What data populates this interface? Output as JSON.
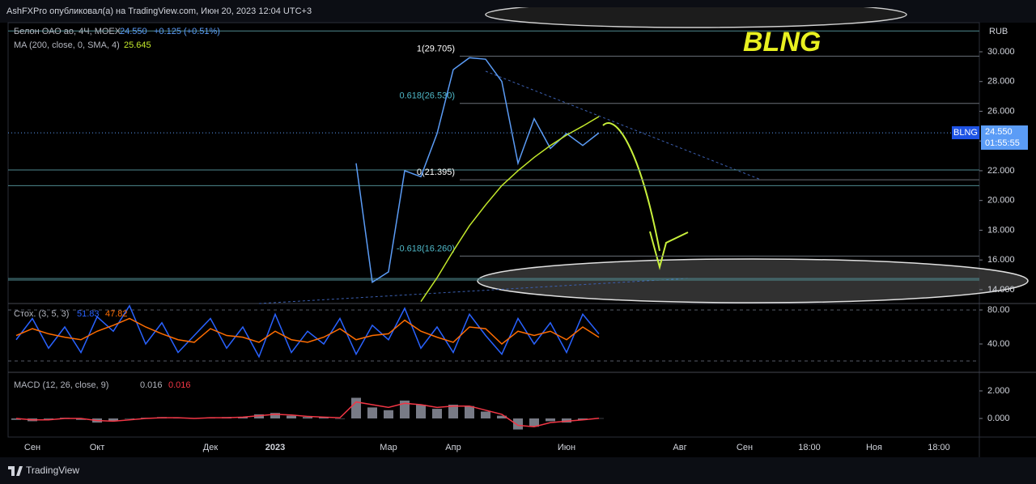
{
  "header": "AshFXPro опубликовал(а) на TradingView.com, Июн 20, 2023 12:04 UTC+3",
  "footer": "TradingView",
  "chart_data": [
    {
      "type": "line",
      "title": "Белон ОАО ао, 4Ч, MOEX",
      "price_label": "24.550",
      "change_label": "+0.125 (+0.51%)",
      "currency": "RUB",
      "annotation": "BLNG",
      "price_tag": {
        "symbol": "BLNG",
        "price": "24.550",
        "countdown": "01:55:55"
      },
      "categories": [
        null,
        "Сен",
        null,
        null,
        null,
        "Окт",
        null,
        null,
        null,
        null,
        null,
        null,
        "Дек",
        null,
        null,
        null,
        "2023",
        null,
        null,
        null,
        null,
        null,
        null,
        "Мар",
        null,
        null,
        null,
        "Апр",
        null,
        null,
        null,
        null,
        null,
        null,
        "Июн",
        null,
        null,
        null,
        null,
        null,
        null,
        "Авг",
        null,
        null,
        null,
        "Сен",
        null,
        null,
        null,
        "18:00",
        null,
        null,
        null,
        "Ноя",
        null,
        null,
        null,
        "18:00",
        null,
        null
      ],
      "ylim": [
        13.07,
        31.85
      ],
      "yticks": [
        {
          "value": 14,
          "label": "14.000"
        },
        {
          "value": 16,
          "label": "16.000"
        },
        {
          "value": 18,
          "label": "18.000"
        },
        {
          "value": 20,
          "label": "20.000"
        },
        {
          "value": 22,
          "label": "22.000"
        },
        {
          "value": 24,
          "label": "24.000"
        },
        {
          "value": 26,
          "label": "26.000"
        },
        {
          "value": 28,
          "label": "28.000"
        },
        {
          "value": 30,
          "label": "30.000"
        }
      ],
      "fib_levels": [
        {
          "value": 29.705,
          "label": "1(29.705)"
        },
        {
          "value": 26.53,
          "label": "0.618(26.530)"
        },
        {
          "value": 21.395,
          "label": "0(21.395)"
        },
        {
          "value": 16.26,
          "label": "-0.618(16.260)"
        }
      ],
      "levels": [
        31.4,
        22.05,
        21.0,
        14.75,
        14.65
      ],
      "series": [
        {
          "name": "Белон ОАО ао, 4Ч, MOEX",
          "color": "#5b9cf6",
          "values": [
            null,
            null,
            null,
            null,
            null,
            null,
            null,
            null,
            null,
            null,
            null,
            null,
            null,
            null,
            null,
            null,
            null,
            null,
            null,
            null,
            null,
            22.5,
            14.5,
            15.2,
            22.0,
            21.6,
            24.5,
            28.8,
            29.6,
            29.5,
            28.0,
            22.5,
            25.5,
            23.5,
            24.5,
            23.7,
            24.55,
            null,
            null,
            null,
            null,
            null,
            null,
            null,
            null,
            null,
            null,
            null,
            null,
            null,
            null,
            null,
            null,
            null,
            null,
            null,
            null,
            null,
            null,
            null
          ]
        },
        {
          "name": "MA (200, close, 0, SMA, 4)",
          "color": "#c3e82b",
          "values": [
            null,
            null,
            null,
            null,
            null,
            null,
            null,
            null,
            null,
            null,
            null,
            null,
            null,
            null,
            null,
            null,
            null,
            null,
            null,
            null,
            null,
            null,
            null,
            null,
            null,
            13.2,
            14.8,
            16.6,
            18.3,
            19.7,
            21.0,
            22.0,
            22.9,
            23.7,
            24.4,
            25.0,
            25.645,
            null,
            null,
            null,
            null,
            null,
            null,
            null,
            null,
            null,
            null,
            null,
            null,
            null,
            null,
            null,
            null,
            null,
            null,
            null,
            null,
            null,
            null,
            null
          ]
        }
      ]
    },
    {
      "type": "line",
      "title": "Стох. (3, 5, 3)",
      "ylim": [
        6.7,
        87.6
      ],
      "yticks": [
        {
          "value": 40,
          "label": "40.00"
        },
        {
          "value": 80,
          "label": "80.00"
        }
      ],
      "bands": [
        80,
        20
      ],
      "series": [
        {
          "color": "#2962ff",
          "values": [
            45,
            70,
            35,
            60,
            30,
            72,
            55,
            85,
            40,
            65,
            30,
            50,
            70,
            35,
            60,
            25,
            75,
            30,
            55,
            40,
            70,
            28,
            62,
            45,
            82,
            35,
            60,
            30,
            75,
            50,
            28,
            70,
            40,
            65,
            30,
            75,
            51.83
          ]
        },
        {
          "color": "#ff6d00",
          "values": [
            50,
            58,
            52,
            48,
            45,
            55,
            62,
            70,
            60,
            52,
            45,
            42,
            58,
            50,
            48,
            42,
            55,
            45,
            42,
            48,
            58,
            45,
            50,
            52,
            68,
            55,
            48,
            42,
            60,
            58,
            40,
            55,
            50,
            55,
            45,
            60,
            47.82
          ]
        }
      ]
    },
    {
      "type": "bar",
      "title": "MACD (12, 26, close, 9)",
      "ylim": [
        -1.35,
        3.35
      ],
      "yticks": [
        {
          "value": 0,
          "label": "0.000"
        },
        {
          "value": 2,
          "label": "2.000"
        }
      ],
      "series": [
        {
          "type": "bar",
          "color": "#787b86",
          "values": [
            -0.1,
            -0.2,
            -0.05,
            0.05,
            -0.1,
            -0.3,
            -0.2,
            0,
            0.05,
            0.1,
            0.05,
            0,
            0.05,
            0.1,
            0.1,
            0.3,
            0.4,
            0.2,
            0.1,
            0.1,
            0.0,
            1.5,
            0.8,
            0.6,
            1.3,
            1.0,
            0.7,
            1.0,
            0.9,
            0.5,
            0.2,
            -0.8,
            -0.6,
            -0.2,
            -0.3,
            -0.1,
            0.016
          ]
        },
        {
          "type": "line",
          "color": "#f23645",
          "values": [
            0,
            -0.1,
            -0.1,
            0,
            0,
            -0.15,
            -0.2,
            -0.1,
            0,
            0.05,
            0.05,
            0,
            0.05,
            0.05,
            0.1,
            0.2,
            0.3,
            0.25,
            0.15,
            0.1,
            0.05,
            1.2,
            1.0,
            0.8,
            1.1,
            1.0,
            0.8,
            0.9,
            0.9,
            0.6,
            0.3,
            -0.5,
            -0.6,
            -0.3,
            -0.2,
            -0.1,
            0.016
          ]
        }
      ]
    }
  ]
}
